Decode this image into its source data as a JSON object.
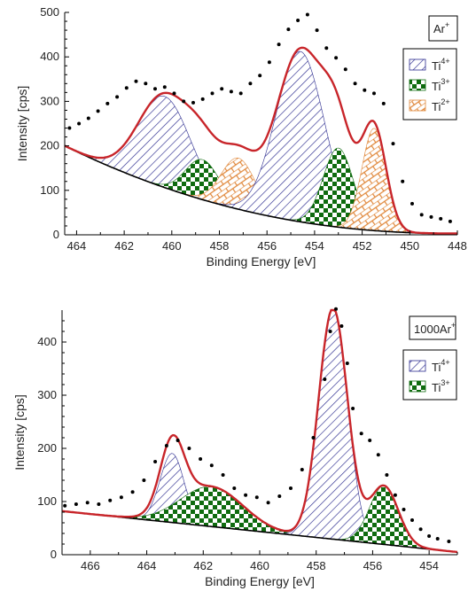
{
  "chart_data": [
    {
      "type": "line",
      "title": "",
      "xlabel": "Binding Energy [eV]",
      "ylabel": "Intensity [cps]",
      "xlim": [
        464.5,
        448
      ],
      "x_reversed": true,
      "ylim": [
        0,
        500
      ],
      "x_ticks": [
        464,
        462,
        460,
        458,
        456,
        454,
        452,
        450,
        448
      ],
      "y_ticks": [
        0,
        100,
        200,
        300,
        400,
        500
      ],
      "sample_label": {
        "base": "Ar",
        "sup": "+"
      },
      "legend_position": "right",
      "legend": [
        {
          "name": "Ti",
          "sup": "4+",
          "color": "#2b2b8f",
          "pattern": "hatch-diagonal"
        },
        {
          "name": "Ti",
          "sup": "3+",
          "color": "#0f6b0f",
          "pattern": "checker"
        },
        {
          "name": "Ti",
          "sup": "2+",
          "color": "#e0873a",
          "pattern": "brick"
        }
      ],
      "background": {
        "type": "exponential",
        "y_at_high_be": 200,
        "y_at_low_be": 3,
        "color": "#000000"
      },
      "components": [
        {
          "series": "Ti4+",
          "center": 460.3,
          "height": 205,
          "fwhm": 2.6
        },
        {
          "series": "Ti3+",
          "center": 458.7,
          "height": 90,
          "fwhm": 1.7
        },
        {
          "series": "Ti2+",
          "center": 457.2,
          "height": 115,
          "fwhm": 1.7
        },
        {
          "series": "Ti4+",
          "center": 454.6,
          "height": 383,
          "fwhm": 2.4
        },
        {
          "series": "Ti3+",
          "center": 453.0,
          "height": 178,
          "fwhm": 1.5
        },
        {
          "series": "Ti2+",
          "center": 451.5,
          "height": 230,
          "fwhm": 1.2
        }
      ],
      "envelope_color": "#c8252a",
      "data_points": [
        [
          464.3,
          240
        ],
        [
          463.9,
          250
        ],
        [
          463.5,
          262
        ],
        [
          463.1,
          278
        ],
        [
          462.7,
          295
        ],
        [
          462.3,
          310
        ],
        [
          461.9,
          330
        ],
        [
          461.5,
          345
        ],
        [
          461.1,
          340
        ],
        [
          460.7,
          328
        ],
        [
          460.3,
          332
        ],
        [
          459.9,
          318
        ],
        [
          459.5,
          300
        ],
        [
          459.1,
          297
        ],
        [
          458.7,
          305
        ],
        [
          458.3,
          318
        ],
        [
          457.9,
          328
        ],
        [
          457.5,
          322
        ],
        [
          457.1,
          318
        ],
        [
          456.7,
          340
        ],
        [
          456.3,
          358
        ],
        [
          455.9,
          388
        ],
        [
          455.5,
          428
        ],
        [
          455.1,
          462
        ],
        [
          454.7,
          482
        ],
        [
          454.3,
          495
        ],
        [
          453.9,
          460
        ],
        [
          453.5,
          420
        ],
        [
          453.1,
          398
        ],
        [
          452.7,
          372
        ],
        [
          452.3,
          340
        ],
        [
          451.9,
          325
        ],
        [
          451.5,
          318
        ],
        [
          451.1,
          295
        ],
        [
          450.7,
          205
        ],
        [
          450.3,
          120
        ],
        [
          449.9,
          70
        ],
        [
          449.5,
          45
        ],
        [
          449.1,
          40
        ],
        [
          448.7,
          36
        ],
        [
          448.3,
          30
        ]
      ]
    },
    {
      "type": "line",
      "title": "",
      "xlabel": "Binding Energy [eV]",
      "ylabel": "Intensity [cps]",
      "xlim": [
        467,
        453
      ],
      "x_reversed": true,
      "ylim": [
        0,
        460
      ],
      "x_ticks": [
        466,
        464,
        462,
        460,
        458,
        456,
        454
      ],
      "y_ticks": [
        0,
        100,
        200,
        300,
        400
      ],
      "sample_label": {
        "base": "1000Ar",
        "sup": "+"
      },
      "legend_position": "right",
      "legend": [
        {
          "name": "Ti",
          "sup": "4+",
          "color": "#2b2b8f",
          "pattern": "hatch-diagonal"
        },
        {
          "name": "Ti",
          "sup": "3+",
          "color": "#0f6b0f",
          "pattern": "checker"
        }
      ],
      "background": {
        "type": "linear",
        "y_at_high_be": 82,
        "y_at_low_be": 5,
        "color": "#000000"
      },
      "components": [
        {
          "series": "Ti4+",
          "center": 463.1,
          "height": 130,
          "fwhm": 1.0
        },
        {
          "series": "Ti3+",
          "center": 461.7,
          "height": 75,
          "fwhm": 2.6
        },
        {
          "series": "Ti4+",
          "center": 457.4,
          "height": 435,
          "fwhm": 1.2
        },
        {
          "series": "Ti3+",
          "center": 455.6,
          "height": 110,
          "fwhm": 1.2
        }
      ],
      "envelope_color": "#c8252a",
      "data_points": [
        [
          466.9,
          92
        ],
        [
          466.5,
          95
        ],
        [
          466.1,
          98
        ],
        [
          465.7,
          95
        ],
        [
          465.3,
          102
        ],
        [
          464.9,
          108
        ],
        [
          464.5,
          118
        ],
        [
          464.1,
          140
        ],
        [
          463.7,
          175
        ],
        [
          463.3,
          205
        ],
        [
          462.9,
          215
        ],
        [
          462.5,
          200
        ],
        [
          462.1,
          180
        ],
        [
          461.7,
          168
        ],
        [
          461.3,
          150
        ],
        [
          460.9,
          125
        ],
        [
          460.5,
          112
        ],
        [
          460.1,
          108
        ],
        [
          459.7,
          98
        ],
        [
          459.3,
          110
        ],
        [
          458.9,
          125
        ],
        [
          458.5,
          160
        ],
        [
          458.1,
          220
        ],
        [
          457.7,
          330
        ],
        [
          457.5,
          420
        ],
        [
          457.3,
          462
        ],
        [
          457.1,
          430
        ],
        [
          456.9,
          360
        ],
        [
          456.7,
          275
        ],
        [
          456.4,
          228
        ],
        [
          456.1,
          215
        ],
        [
          455.8,
          188
        ],
        [
          455.5,
          150
        ],
        [
          455.2,
          112
        ],
        [
          454.9,
          85
        ],
        [
          454.6,
          65
        ],
        [
          454.3,
          48
        ],
        [
          454.0,
          35
        ],
        [
          453.7,
          30
        ],
        [
          453.3,
          25
        ]
      ]
    }
  ]
}
